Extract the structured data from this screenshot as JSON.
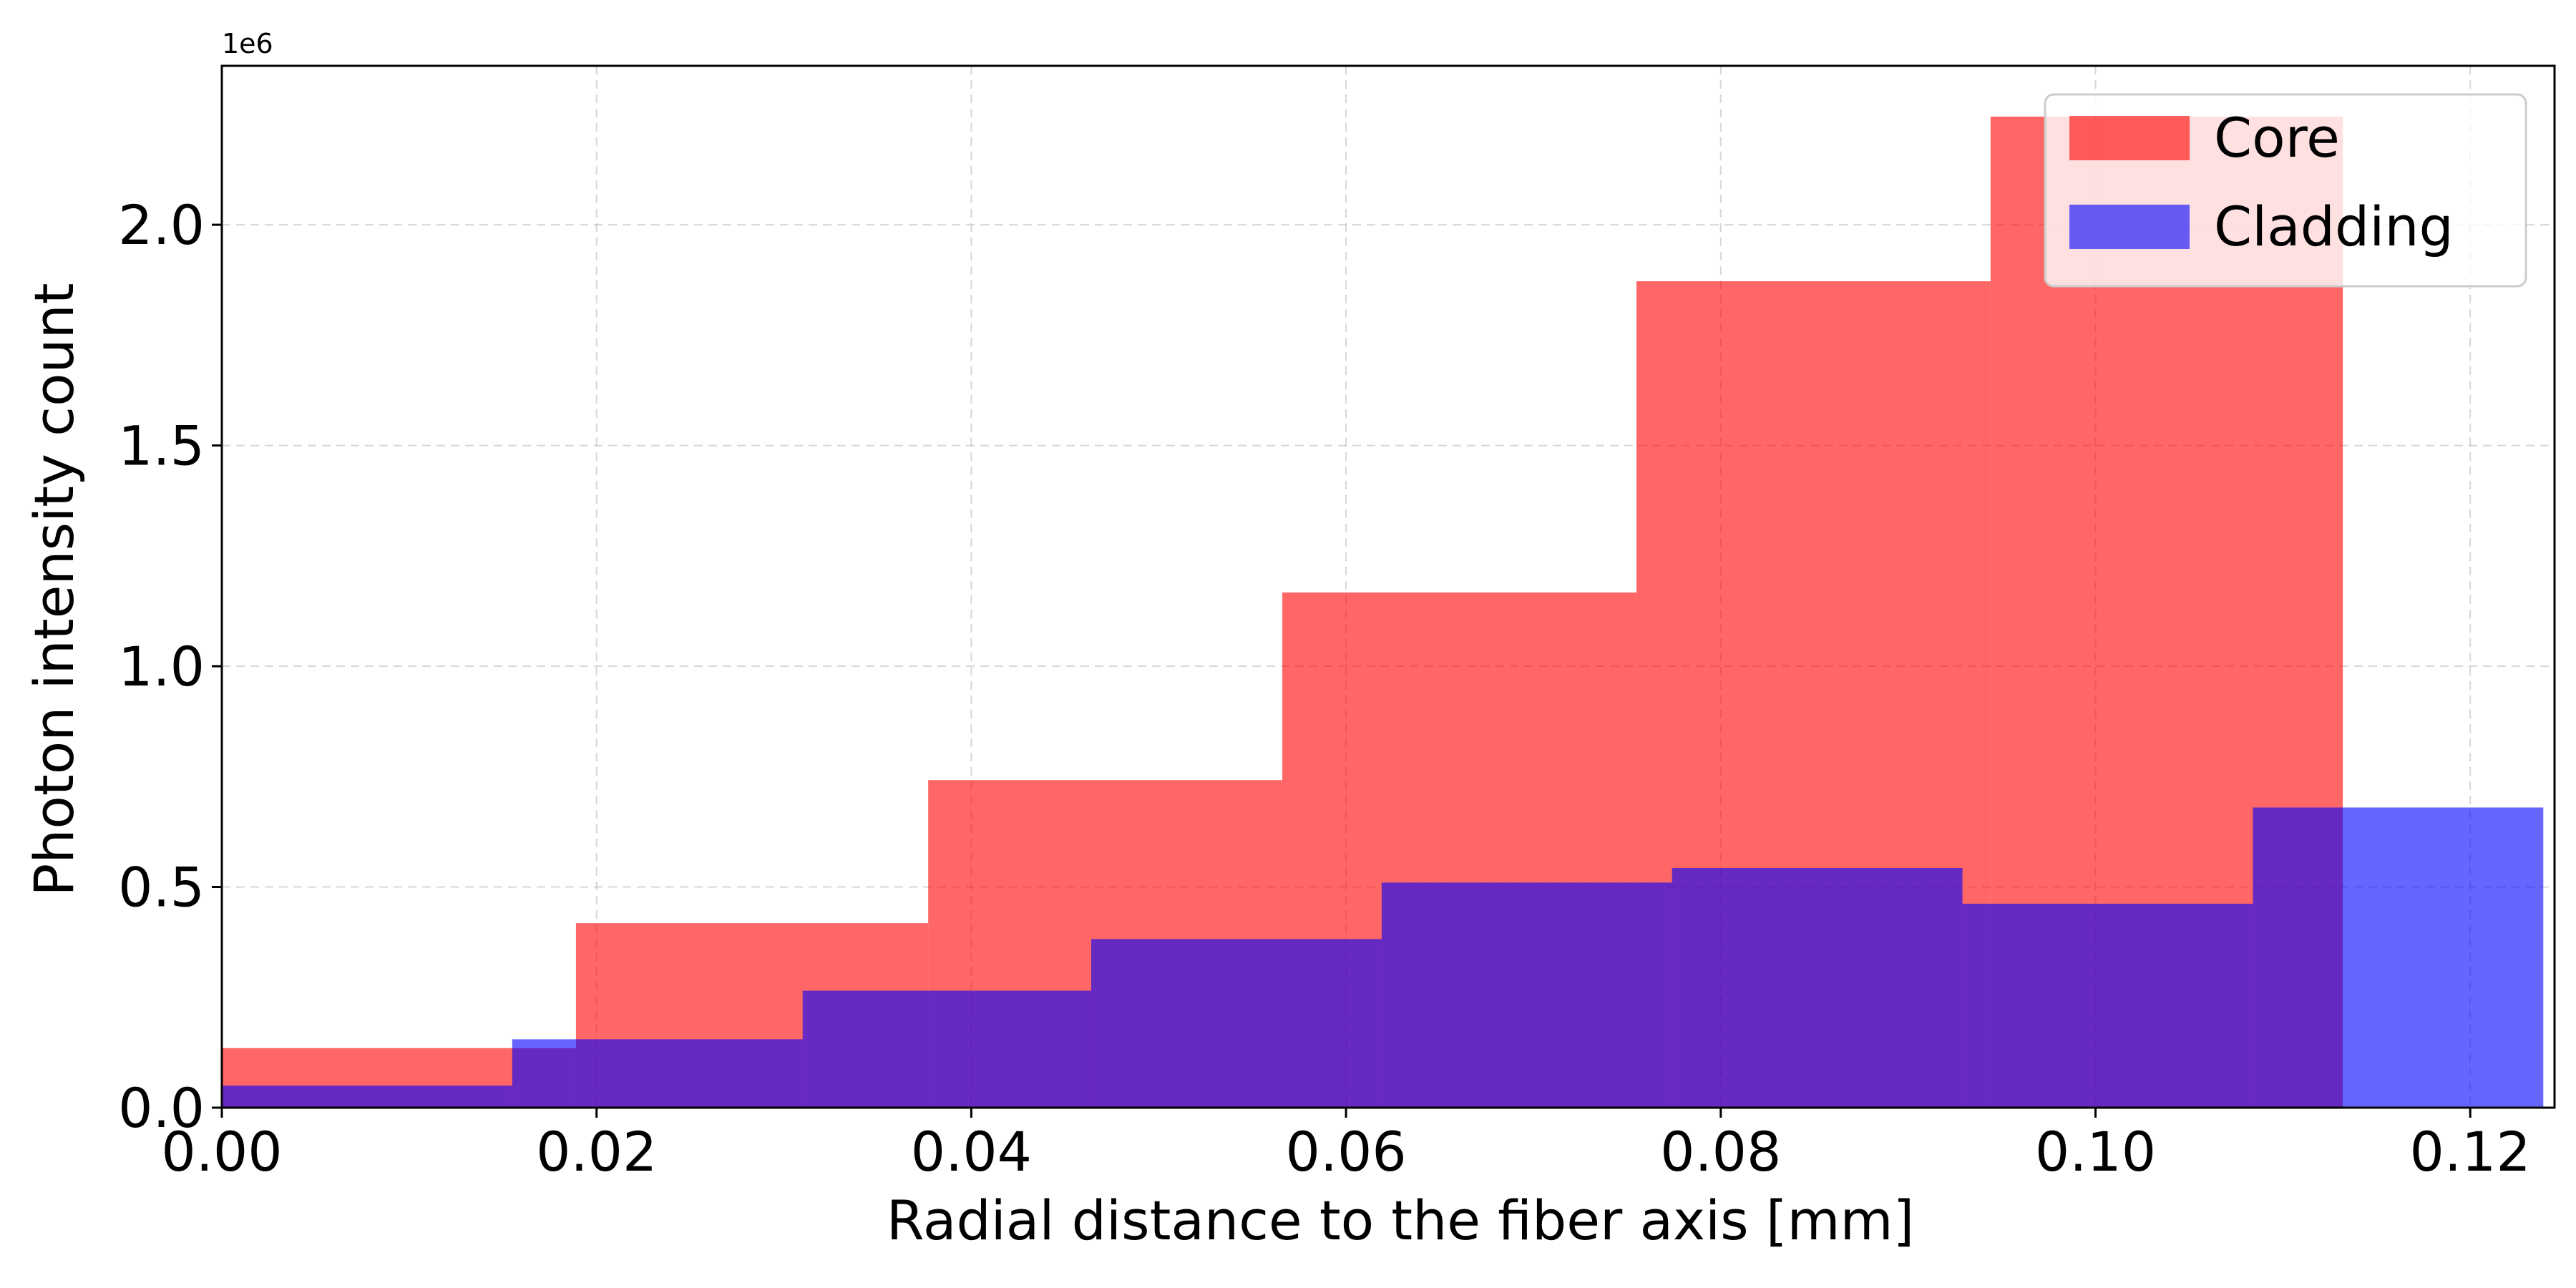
{
  "chart_data": {
    "type": "histogram",
    "xlabel": "Radial distance to the fiber axis [mm]",
    "ylabel": "Photon intensity count",
    "y_scale_label": "1e6",
    "y_multiplier": 1000000,
    "xlim": [
      0.0,
      0.1245
    ],
    "ylim": [
      0.0,
      2.36
    ],
    "x_ticks": [
      0.0,
      0.02,
      0.04,
      0.06,
      0.08,
      0.1,
      0.12
    ],
    "x_tick_labels": [
      "0.00",
      "0.02",
      "0.04",
      "0.06",
      "0.08",
      "0.10",
      "0.12"
    ],
    "y_ticks": [
      0.0,
      0.5,
      1.0,
      1.5,
      2.0
    ],
    "y_tick_labels": [
      "0.0",
      "0.5",
      "1.0",
      "1.5",
      "2.0"
    ],
    "grid": true,
    "legend_position": "top-right",
    "series": [
      {
        "name": "Core",
        "color": "#ff0000",
        "alpha": 0.6,
        "bin_edges": [
          0.0,
          0.0189,
          0.0377,
          0.0566,
          0.0755,
          0.0944,
          0.1132
        ],
        "values": [
          0.135,
          0.418,
          0.742,
          1.167,
          1.872,
          2.245
        ]
      },
      {
        "name": "Cladding",
        "color": "#0000ff",
        "alpha": 0.6,
        "bin_edges": [
          0.0,
          0.0155,
          0.031,
          0.0464,
          0.0619,
          0.0774,
          0.0929,
          0.1084,
          0.1239
        ],
        "values": [
          0.05,
          0.155,
          0.265,
          0.382,
          0.51,
          0.543,
          0.462,
          0.68
        ]
      }
    ]
  }
}
